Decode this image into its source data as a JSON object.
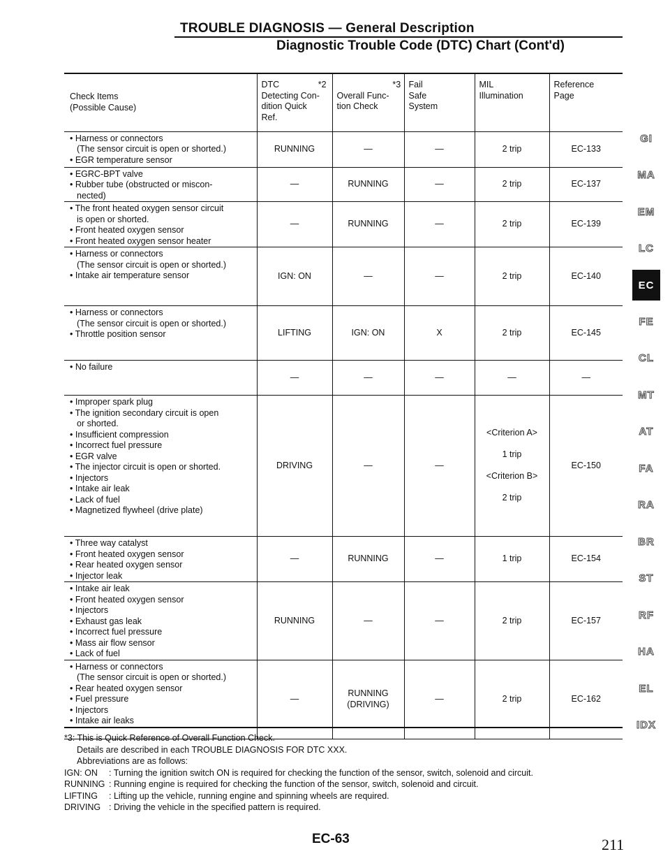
{
  "header": {
    "title": "TROUBLE DIAGNOSIS — General Description",
    "subtitle": "Diagnostic Trouble Code (DTC) Chart (Cont'd)"
  },
  "table": {
    "columns": [
      [
        "Check Items",
        "(Possible Cause)"
      ],
      [
        "DTC                *2",
        "Detecting Con-",
        "dition Quick",
        "Ref."
      ],
      [
        "                       *3",
        "Overall Func-",
        "tion Check"
      ],
      [
        "Fail",
        "Safe",
        "System"
      ],
      [
        "MIL",
        "Illumination"
      ],
      [
        "Reference",
        "Page"
      ]
    ],
    "rows": [
      {
        "items": [
          "• Harness or connectors",
          "(The sensor circuit is open or shorted.)",
          "• EGR temperature sensor"
        ],
        "dtc": "RUNNING",
        "overall": "—",
        "failsafe": "—",
        "mil": "2 trip",
        "ref": "EC-133"
      },
      {
        "items": [
          "• EGRC-BPT valve",
          "• Rubber tube (obstructed or miscon-",
          "nected)"
        ],
        "dtc": "—",
        "overall": "RUNNING",
        "failsafe": "—",
        "mil": "2 trip",
        "ref": "EC-137"
      },
      {
        "items": [
          "• The front heated oxygen sensor circuit",
          "is open or shorted.",
          "• Front heated oxygen sensor",
          "• Front heated oxygen sensor heater"
        ],
        "dtc": "—",
        "overall": "RUNNING",
        "failsafe": "—",
        "mil": "2 trip",
        "ref": "EC-139"
      },
      {
        "items": [
          "• Harness or connectors",
          "(The sensor circuit is open or shorted.)",
          "• Intake air temperature sensor"
        ],
        "dtc": "IGN: ON",
        "overall": "—",
        "failsafe": "—",
        "mil": "2 trip",
        "ref": "EC-140"
      },
      {
        "items": [
          "• Harness or connectors",
          "(The sensor circuit is open or shorted.)",
          "• Throttle position sensor"
        ],
        "dtc": "LIFTING",
        "overall": "IGN: ON",
        "failsafe": "X",
        "mil": "2 trip",
        "ref": "EC-145"
      },
      {
        "items": [
          "• No failure"
        ],
        "dtc": "—",
        "overall": "—",
        "failsafe": "—",
        "mil": "—",
        "ref": "—"
      },
      {
        "items": [
          "• Improper spark plug",
          "• The ignition secondary circuit is open",
          "or shorted.",
          "• Insufficient compression",
          "• Incorrect fuel pressure",
          "• EGR valve",
          "• The injector circuit is open or shorted.",
          "• Injectors",
          "• Intake air leak",
          "• Lack of fuel",
          "• Magnetized flywheel (drive plate)"
        ],
        "dtc": "DRIVING",
        "overall": "—",
        "failsafe": "—",
        "mil": "<Criterion A>\n\n1 trip\n\n<Criterion B>\n\n2 trip",
        "ref": "EC-150"
      },
      {
        "items": [
          "• Three way catalyst",
          "• Front heated oxygen sensor",
          "• Rear heated oxygen sensor",
          "• Injector leak"
        ],
        "dtc": "—",
        "overall": "RUNNING",
        "failsafe": "—",
        "mil": "1 trip",
        "ref": "EC-154"
      },
      {
        "items": [
          "• Intake air leak",
          "• Front heated oxygen sensor",
          "• Injectors",
          "• Exhaust gas leak",
          "• Incorrect fuel pressure",
          "• Mass air flow sensor",
          "• Lack of fuel"
        ],
        "dtc": "RUNNING",
        "overall": "—",
        "failsafe": "—",
        "mil": "2 trip",
        "ref": "EC-157"
      },
      {
        "items": [
          "• Harness or connectors",
          "(The sensor circuit is open or shorted.)",
          "• Rear heated oxygen sensor",
          "• Fuel pressure",
          "• Injectors",
          "• Intake air leaks"
        ],
        "dtc": "—",
        "overall": "RUNNING\n(DRIVING)",
        "failsafe": "—",
        "mil": "2 trip",
        "ref": "EC-162"
      }
    ]
  },
  "notes": {
    "lines": [
      "*3: This is Quick Reference of Overall Function Check.",
      "Details are described in each TROUBLE DIAGNOSIS FOR DTC XXX.",
      "Abbreviations are as follows:"
    ],
    "abbreviations": [
      [
        "IGN: ON",
        ": Turning the ignition switch ON is required for checking the function of the sensor, switch, solenoid and circuit."
      ],
      [
        "RUNNING",
        ": Running engine is required for checking the function of the sensor, switch, solenoid and circuit."
      ],
      [
        "LIFTING",
        ": Lifting up the vehicle, running engine and spinning wheels are required."
      ],
      [
        "DRIVING",
        ": Driving the vehicle in the specified pattern is required."
      ]
    ]
  },
  "side_tabs": [
    "GI",
    "MA",
    "EM",
    "LC",
    "EC",
    "FE",
    "CL",
    "MT",
    "AT",
    "FA",
    "RA",
    "BR",
    "ST",
    "RF",
    "HA",
    "EL",
    "IDX"
  ],
  "active_tab": "EC",
  "footer": {
    "page_code": "EC-63",
    "page_number": "211"
  }
}
